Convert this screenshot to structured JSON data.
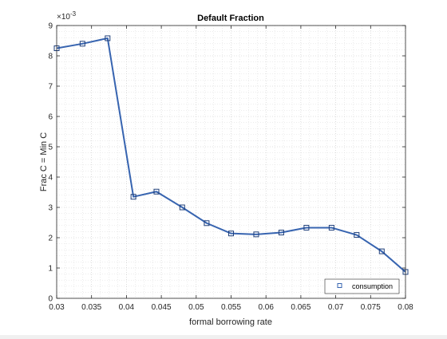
{
  "chart_data": {
    "type": "line",
    "title": "Default Fraction",
    "xlabel": "formal borrowing rate",
    "ylabel": "Frac C = Min C",
    "exponent_label": "×10",
    "exponent_power": "-3",
    "xlim": [
      0.03,
      0.08
    ],
    "ylim": [
      0,
      9
    ],
    "xticks": [
      0.03,
      0.035,
      0.04,
      0.045,
      0.05,
      0.055,
      0.06,
      0.065,
      0.07,
      0.075,
      0.08
    ],
    "xtick_labels": [
      "0.03",
      "0.035",
      "0.04",
      "0.045",
      "0.05",
      "0.055",
      "0.06",
      "0.065",
      "0.07",
      "0.075",
      "0.08"
    ],
    "yticks": [
      0,
      1,
      2,
      3,
      4,
      5,
      6,
      7,
      8,
      9
    ],
    "ytick_labels": [
      "0",
      "1",
      "2",
      "3",
      "4",
      "5",
      "6",
      "7",
      "8",
      "9"
    ],
    "grid": "minor dotted",
    "legend_position": "bottom-right",
    "series": [
      {
        "name": "consumption",
        "color": "#3764b0",
        "marker": "square",
        "x": [
          0.03,
          0.0337,
          0.0373,
          0.041,
          0.0443,
          0.048,
          0.0515,
          0.055,
          0.0586,
          0.0622,
          0.0658,
          0.0694,
          0.073,
          0.0766,
          0.08
        ],
        "y": [
          8.25,
          8.4,
          8.58,
          3.35,
          3.52,
          3.0,
          2.48,
          2.14,
          2.11,
          2.17,
          2.33,
          2.33,
          2.09,
          1.55,
          0.87
        ]
      }
    ]
  }
}
